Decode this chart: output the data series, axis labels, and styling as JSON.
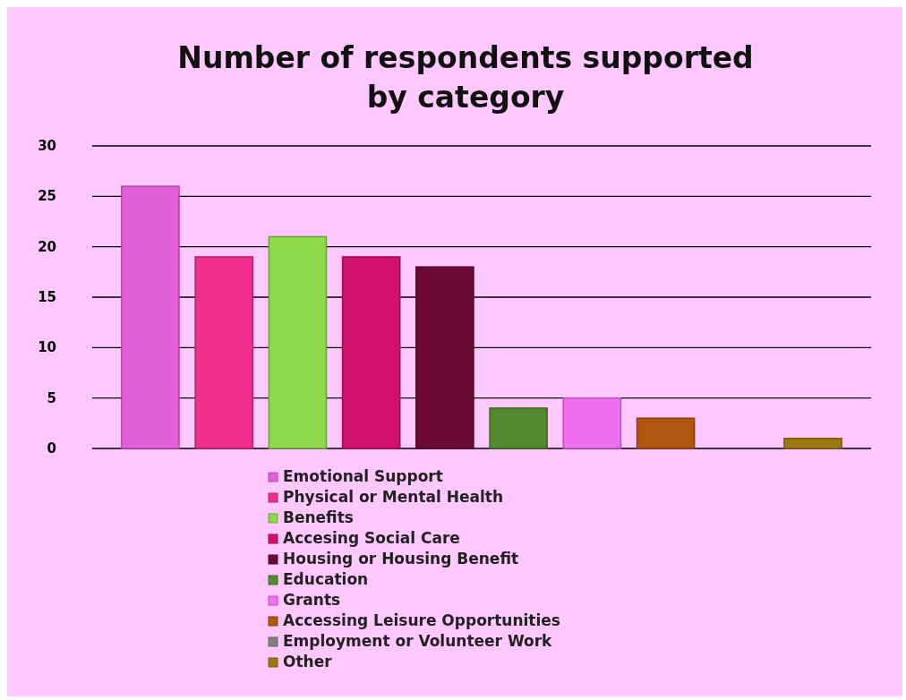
{
  "chart_data": {
    "type": "bar",
    "title": "Number of respondents supported by category",
    "categories": [
      null,
      null,
      null,
      null,
      null,
      null,
      null,
      null,
      null,
      null
    ],
    "series": [
      {
        "name": "Emotional Support",
        "color": "#e35fdc",
        "values": [
          26,
          null,
          null,
          null,
          null,
          null,
          null,
          null,
          null,
          null
        ]
      },
      {
        "name": "Physical or Mental Health",
        "color": "#ee2f8c",
        "values": [
          null,
          19,
          null,
          null,
          null,
          null,
          null,
          null,
          null,
          null
        ]
      },
      {
        "name": "Benefits",
        "color": "#8fd94a",
        "values": [
          null,
          null,
          21,
          null,
          null,
          null,
          null,
          null,
          null,
          null
        ]
      },
      {
        "name": "Accesing Social Care",
        "color": "#d3106c",
        "values": [
          null,
          null,
          null,
          19,
          null,
          null,
          null,
          null,
          null,
          null
        ]
      },
      {
        "name": "Housing or Housing Benefit",
        "color": "#6a0a35",
        "values": [
          null,
          null,
          null,
          null,
          18,
          null,
          null,
          null,
          null,
          null
        ]
      },
      {
        "name": "Education",
        "color": "#4f8a2e",
        "values": [
          null,
          null,
          null,
          null,
          null,
          4,
          null,
          null,
          null,
          null
        ]
      },
      {
        "name": "Grants",
        "color": "#f06ef0",
        "values": [
          null,
          null,
          null,
          null,
          null,
          null,
          5,
          null,
          null,
          null
        ]
      },
      {
        "name": "Accessing Leisure Opportunities",
        "color": "#b0560f",
        "values": [
          null,
          null,
          null,
          null,
          null,
          null,
          null,
          3,
          null,
          null
        ]
      },
      {
        "name": "Employment or Volunteer Work",
        "color": "#808080",
        "values": [
          null,
          null,
          null,
          null,
          null,
          null,
          null,
          null,
          0,
          null
        ]
      },
      {
        "name": "Other",
        "color": "#9a7a10",
        "values": [
          null,
          null,
          null,
          null,
          null,
          null,
          null,
          null,
          null,
          1
        ]
      }
    ],
    "ylim": [
      0,
      30
    ],
    "yticks": [
      0,
      5,
      10,
      15,
      20,
      25,
      30
    ],
    "grid": "y",
    "legend": "bottom"
  }
}
